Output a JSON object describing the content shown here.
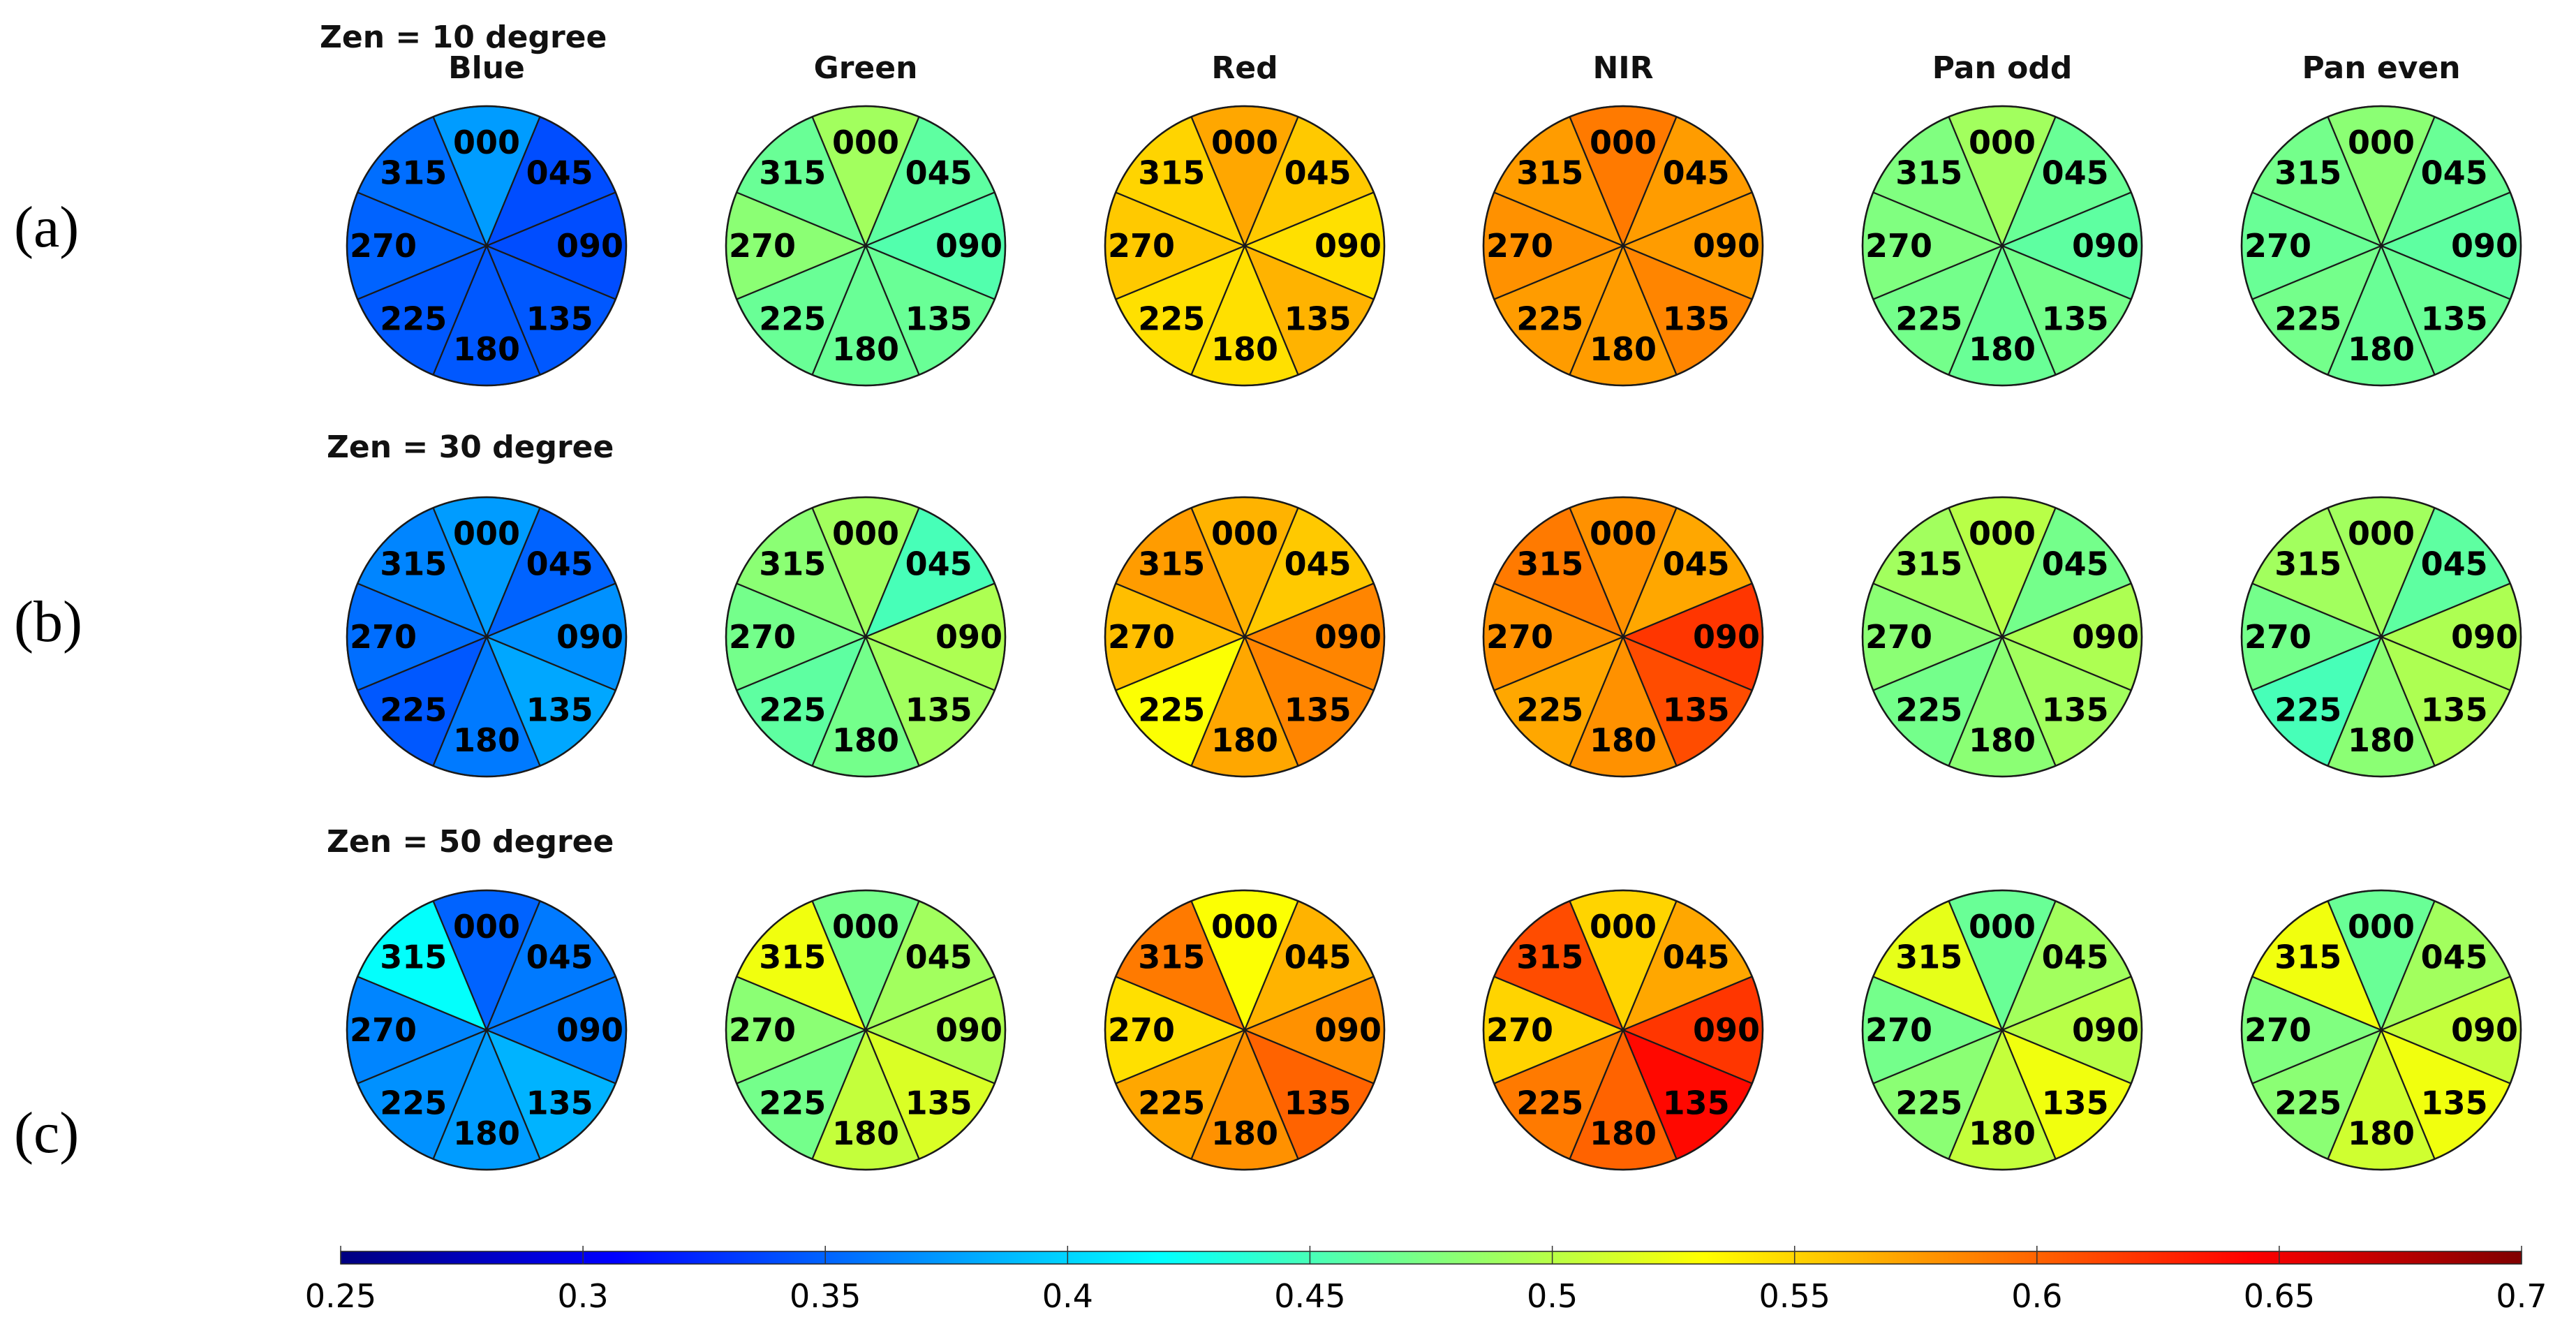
{
  "chart_data": {
    "type": "polar-sector-heatmap",
    "colormap": "jet",
    "colorbar": {
      "min": 0.25,
      "max": 0.7,
      "ticks": [
        "0.25",
        "0.3",
        "0.35",
        "0.4",
        "0.45",
        "0.5",
        "0.55",
        "0.6",
        "0.65",
        "0.7"
      ],
      "tick_values": [
        0.25,
        0.3,
        0.35,
        0.4,
        0.45,
        0.5,
        0.55,
        0.6,
        0.65,
        0.7
      ]
    },
    "azimuth_labels": [
      "000",
      "045",
      "090",
      "135",
      "180",
      "225",
      "270",
      "315"
    ],
    "bands": [
      "Blue",
      "Green",
      "Red",
      "NIR",
      "Pan odd",
      "Pan even"
    ],
    "rows": [
      {
        "label": "(a)",
        "zenith_title": "Zen = 10 degree",
        "values": [
          [
            0.375,
            0.34,
            0.34,
            0.345,
            0.345,
            0.345,
            0.35,
            0.355
          ],
          [
            0.49,
            0.46,
            0.455,
            0.465,
            0.465,
            0.465,
            0.48,
            0.465
          ],
          [
            0.57,
            0.555,
            0.545,
            0.565,
            0.545,
            0.545,
            0.555,
            0.55
          ],
          [
            0.59,
            0.575,
            0.575,
            0.585,
            0.575,
            0.575,
            0.58,
            0.575
          ],
          [
            0.49,
            0.465,
            0.46,
            0.47,
            0.465,
            0.47,
            0.475,
            0.475
          ],
          [
            0.48,
            0.465,
            0.46,
            0.465,
            0.465,
            0.47,
            0.465,
            0.47
          ]
        ]
      },
      {
        "label": "(b)",
        "zenith_title": "Zen = 30 degree",
        "values": [
          [
            0.375,
            0.35,
            0.37,
            0.38,
            0.36,
            0.345,
            0.355,
            0.365
          ],
          [
            0.49,
            0.45,
            0.495,
            0.49,
            0.47,
            0.46,
            0.47,
            0.48
          ],
          [
            0.565,
            0.555,
            0.585,
            0.585,
            0.57,
            0.53,
            0.56,
            0.575
          ],
          [
            0.58,
            0.57,
            0.62,
            0.61,
            0.58,
            0.57,
            0.58,
            0.59
          ],
          [
            0.5,
            0.47,
            0.495,
            0.49,
            0.48,
            0.47,
            0.48,
            0.49
          ],
          [
            0.49,
            0.46,
            0.495,
            0.495,
            0.48,
            0.45,
            0.47,
            0.49
          ]
        ]
      },
      {
        "label": "(c)",
        "zenith_title": "Zen = 50 degree",
        "values": [
          [
            0.35,
            0.36,
            0.36,
            0.385,
            0.375,
            0.37,
            0.365,
            0.42
          ],
          [
            0.47,
            0.49,
            0.495,
            0.515,
            0.505,
            0.47,
            0.48,
            0.525
          ],
          [
            0.53,
            0.565,
            0.58,
            0.6,
            0.58,
            0.57,
            0.545,
            0.59
          ],
          [
            0.55,
            0.57,
            0.62,
            0.64,
            0.6,
            0.59,
            0.55,
            0.61
          ],
          [
            0.465,
            0.49,
            0.5,
            0.525,
            0.505,
            0.48,
            0.47,
            0.52
          ],
          [
            0.465,
            0.49,
            0.505,
            0.525,
            0.51,
            0.48,
            0.475,
            0.525
          ]
        ]
      }
    ]
  }
}
